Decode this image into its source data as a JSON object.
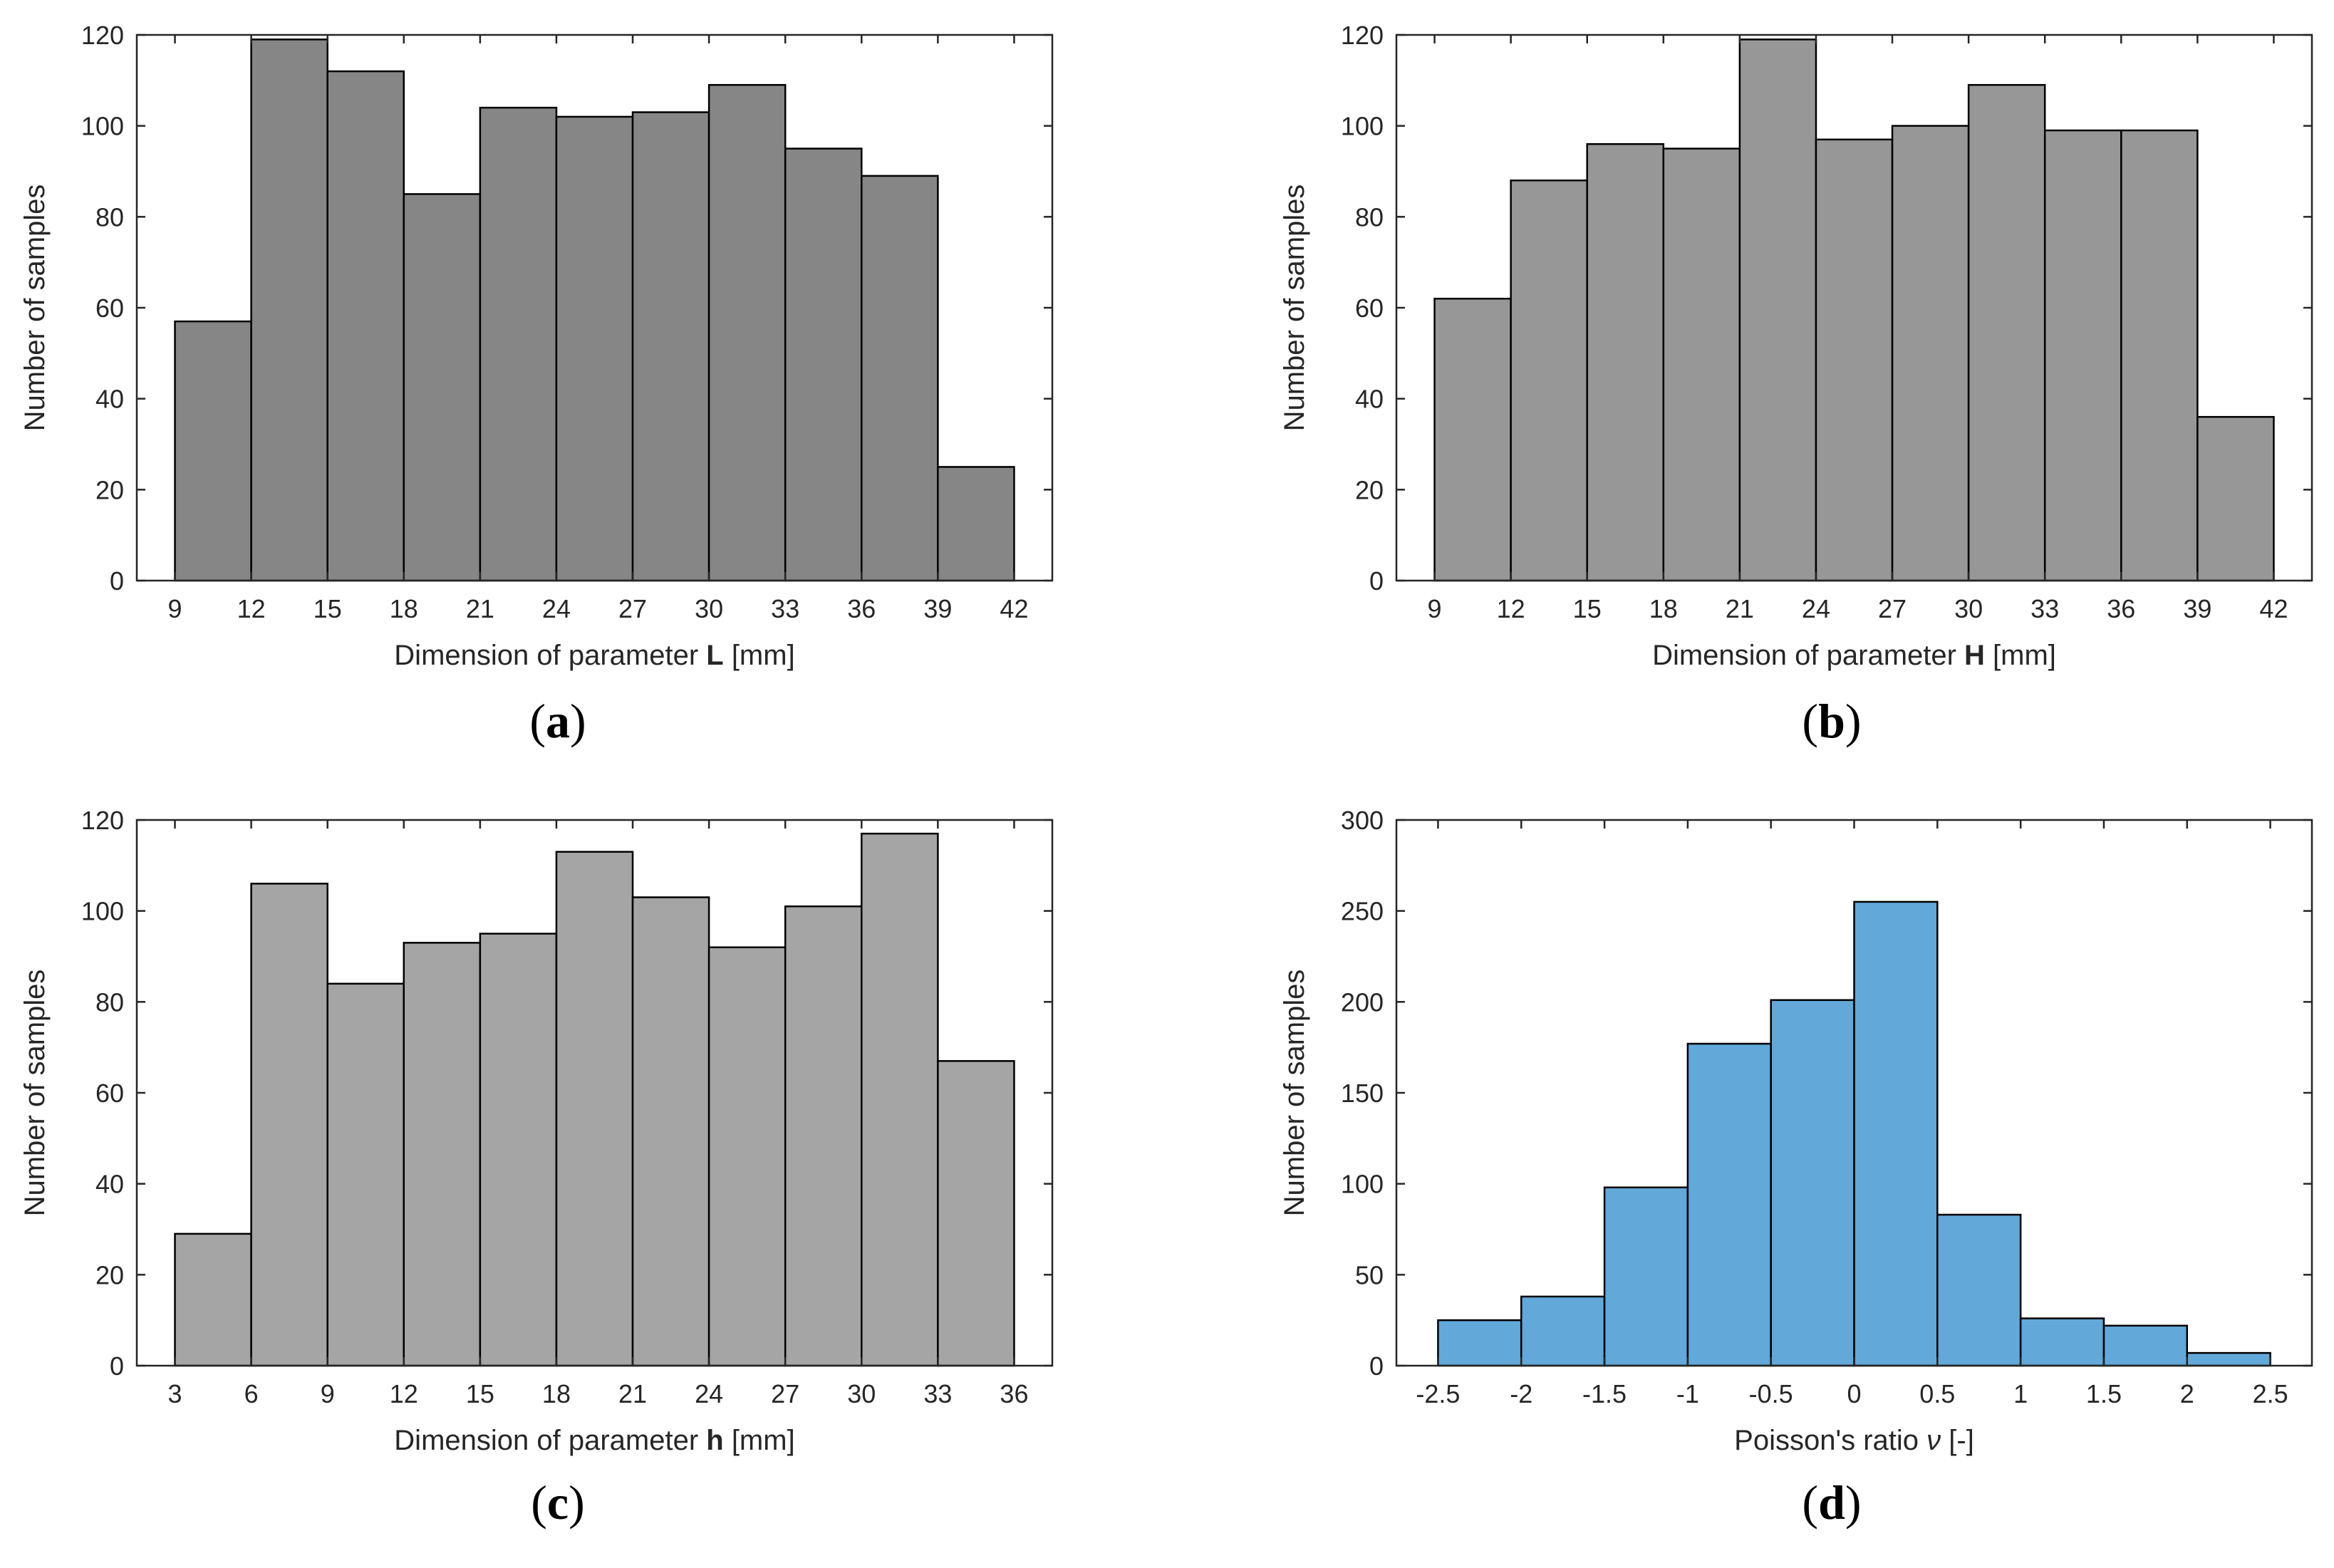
{
  "chart_data": [
    {
      "type": "bar",
      "panel_label": "a",
      "title": "",
      "xlabel": "Dimension of parameter",
      "xlabel_symbol": "L",
      "xlabel_unit": " [mm]",
      "ylabel": "Number of samples",
      "bar_color": "#868686",
      "xlim": [
        7.5,
        43.5
      ],
      "ylim": [
        0,
        120
      ],
      "xticks": [
        9,
        12,
        15,
        18,
        21,
        24,
        27,
        30,
        33,
        36,
        39,
        42
      ],
      "xtick_labels": [
        "9",
        "12",
        "15",
        "18",
        "21",
        "24",
        "27",
        "30",
        "33",
        "36",
        "39",
        "42"
      ],
      "yticks": [
        0,
        20,
        40,
        60,
        80,
        100,
        120
      ],
      "ytick_labels": [
        "0",
        "20",
        "40",
        "60",
        "80",
        "100",
        "120"
      ],
      "bin_edges": [
        9,
        12,
        15,
        18,
        21,
        24,
        27,
        30,
        33,
        36,
        39,
        42
      ],
      "values": [
        57,
        119,
        112,
        85,
        104,
        102,
        103,
        109,
        95,
        89,
        25
      ]
    },
    {
      "type": "bar",
      "panel_label": "b",
      "title": "",
      "xlabel": "Dimension of parameter",
      "xlabel_symbol": "H",
      "xlabel_unit": " [mm]",
      "ylabel": "Number of samples",
      "bar_color": "#979797",
      "xlim": [
        7.5,
        43.5
      ],
      "ylim": [
        0,
        120
      ],
      "xticks": [
        9,
        12,
        15,
        18,
        21,
        24,
        27,
        30,
        33,
        36,
        39,
        42
      ],
      "xtick_labels": [
        "9",
        "12",
        "15",
        "18",
        "21",
        "24",
        "27",
        "30",
        "33",
        "36",
        "39",
        "42"
      ],
      "yticks": [
        0,
        20,
        40,
        60,
        80,
        100,
        120
      ],
      "ytick_labels": [
        "0",
        "20",
        "40",
        "60",
        "80",
        "100",
        "120"
      ],
      "bin_edges": [
        9,
        12,
        15,
        18,
        21,
        24,
        27,
        30,
        33,
        36,
        39,
        42
      ],
      "values": [
        62,
        88,
        96,
        95,
        119,
        97,
        100,
        109,
        99,
        99,
        36
      ]
    },
    {
      "type": "bar",
      "panel_label": "c",
      "title": "",
      "xlabel": "Dimension of parameter",
      "xlabel_symbol": "h",
      "xlabel_unit": " [mm]",
      "ylabel": "Number of samples",
      "bar_color": "#a5a5a5",
      "xlim": [
        1.5,
        37.5
      ],
      "ylim": [
        0,
        120
      ],
      "xticks": [
        3,
        6,
        9,
        12,
        15,
        18,
        21,
        24,
        27,
        30,
        33,
        36
      ],
      "xtick_labels": [
        "3",
        "6",
        "9",
        "12",
        "15",
        "18",
        "21",
        "24",
        "27",
        "30",
        "33",
        "36"
      ],
      "yticks": [
        0,
        20,
        40,
        60,
        80,
        100,
        120
      ],
      "ytick_labels": [
        "0",
        "20",
        "40",
        "60",
        "80",
        "100",
        "120"
      ],
      "bin_edges": [
        3,
        6,
        9,
        12,
        15,
        18,
        21,
        24,
        27,
        30,
        33,
        36
      ],
      "values": [
        29,
        106,
        84,
        93,
        95,
        113,
        103,
        92,
        101,
        117,
        67
      ]
    },
    {
      "type": "bar",
      "panel_label": "d",
      "title": "",
      "xlabel": "Poisson's ratio",
      "xlabel_symbol": "ν",
      "xlabel_unit": " [-]",
      "ylabel": "Number of samples",
      "bar_color": "#62a8d8",
      "xlim": [
        -2.75,
        2.75
      ],
      "ylim": [
        0,
        300
      ],
      "xticks": [
        -2.5,
        -2,
        -1.5,
        -1,
        -0.5,
        0,
        0.5,
        1,
        1.5,
        2,
        2.5
      ],
      "xtick_labels": [
        "-2.5",
        "-2",
        "-1.5",
        "-1",
        "-0.5",
        "0",
        "0.5",
        "1",
        "1.5",
        "2",
        "2.5"
      ],
      "yticks": [
        0,
        50,
        100,
        150,
        200,
        250,
        300
      ],
      "ytick_labels": [
        "0",
        "50",
        "100",
        "150",
        "200",
        "250",
        "300"
      ],
      "bin_edges": [
        -2.5,
        -2,
        -1.5,
        -1,
        -0.5,
        0,
        0.5,
        1,
        1.5,
        2,
        2.5
      ],
      "values": [
        25,
        38,
        98,
        177,
        201,
        255,
        83,
        26,
        22,
        7
      ]
    }
  ]
}
